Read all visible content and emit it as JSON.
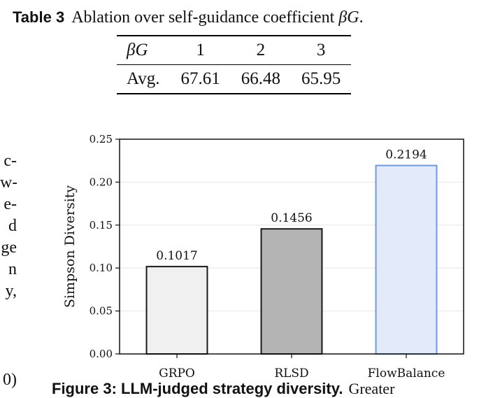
{
  "table": {
    "label": "Table 3",
    "caption_text": "Ablation over self-guidance coefficient ",
    "caption_symbol": "βG",
    "caption_end": ".",
    "header": [
      "βG",
      "1",
      "2",
      "3"
    ],
    "row": [
      "Avg.",
      "67.61",
      "66.48",
      "65.95"
    ]
  },
  "margin_text": {
    "lines": [
      "c-",
      "w-",
      "e-",
      "d",
      "ge",
      "n",
      "y,"
    ],
    "bottom": "0)"
  },
  "chart_data": {
    "type": "bar",
    "categories": [
      "GRPO",
      "RLSD",
      "FlowBalance"
    ],
    "values": [
      0.1017,
      0.1456,
      0.2194
    ],
    "value_labels": [
      "0.1017",
      "0.1456",
      "0.2194"
    ],
    "ylabel": "Simpson Diversity",
    "xlabel": "",
    "title": "",
    "ylim": [
      0,
      0.25
    ],
    "yticks": [
      0.0,
      0.05,
      0.1,
      0.15,
      0.2,
      0.25
    ],
    "ytick_labels": [
      "0.00",
      "0.05",
      "0.10",
      "0.15",
      "0.20",
      "0.25"
    ],
    "grid": "horizontal",
    "bar_fill": [
      "#f0f0f0",
      "#b4b4b4",
      "#e3ebfa"
    ],
    "bar_stroke": [
      "#1a1a1a",
      "#1a1a1a",
      "#6b9ae0"
    ]
  },
  "figure_caption": {
    "label": "Figure 3",
    "title": "LLM-judged strategy diversity.",
    "rest": "Greater"
  }
}
